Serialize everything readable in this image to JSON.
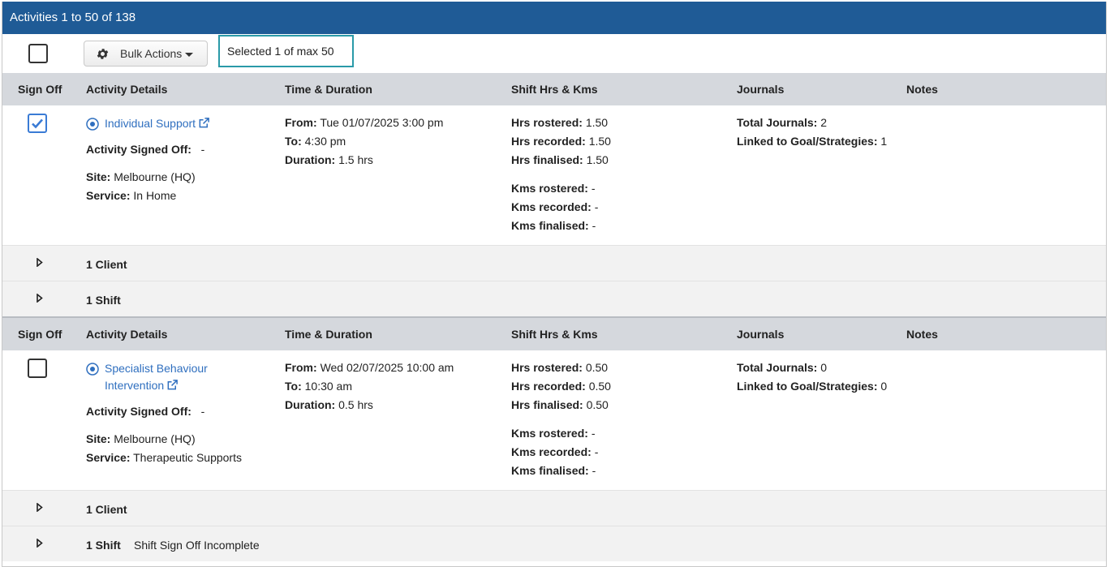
{
  "title": "Activities 1 to 50 of 138",
  "toolbar": {
    "bulk_label": "Bulk Actions",
    "selected_text": "Selected 1 of max 50"
  },
  "headers": {
    "sign_off": "Sign Off",
    "activity_details": "Activity Details",
    "time_duration": "Time & Duration",
    "shift_hrs_kms": "Shift Hrs & Kms",
    "journals": "Journals",
    "notes": "Notes"
  },
  "labels": {
    "signed_off": "Activity Signed Off:",
    "site": "Site:",
    "service": "Service:",
    "from": "From:",
    "to": "To:",
    "duration": "Duration:",
    "hrs_rostered": "Hrs rostered:",
    "hrs_recorded": "Hrs recorded:",
    "hrs_finalised": "Hrs finalised:",
    "kms_rostered": "Kms rostered:",
    "kms_recorded": "Kms recorded:",
    "kms_finalised": "Kms finalised:",
    "total_journals": "Total Journals:",
    "linked_goals": "Linked to Goal/Strategies:"
  },
  "activities": [
    {
      "checked": true,
      "name": "Individual Support",
      "signed_off": "-",
      "site": "Melbourne (HQ)",
      "service": "In Home",
      "from": "Tue 01/07/2025 3:00 pm",
      "to": "4:30 pm",
      "duration": "1.5 hrs",
      "hrs_rostered": "1.50",
      "hrs_recorded": "1.50",
      "hrs_finalised": "1.50",
      "kms_rostered": "-",
      "kms_recorded": "-",
      "kms_finalised": "-",
      "total_journals": "2",
      "linked_goals": "1",
      "client_label": "1 Client",
      "shift_label": "1 Shift",
      "shift_note": ""
    },
    {
      "checked": false,
      "name": "Specialist Behaviour Intervention",
      "signed_off": "-",
      "site": "Melbourne (HQ)",
      "service": "Therapeutic Supports",
      "from": "Wed 02/07/2025 10:00 am",
      "to": "10:30 am",
      "duration": "0.5 hrs",
      "hrs_rostered": "0.50",
      "hrs_recorded": "0.50",
      "hrs_finalised": "0.50",
      "kms_rostered": "-",
      "kms_recorded": "-",
      "kms_finalised": "-",
      "total_journals": "0",
      "linked_goals": "0",
      "client_label": "1 Client",
      "shift_label": "1 Shift",
      "shift_note": "Shift Sign Off Incomplete"
    }
  ],
  "colors": {
    "title_bar": "#1f5b96",
    "link": "#2f6fbf",
    "selected_border": "#2a9aa8",
    "header_bg": "#d5d8dd"
  }
}
